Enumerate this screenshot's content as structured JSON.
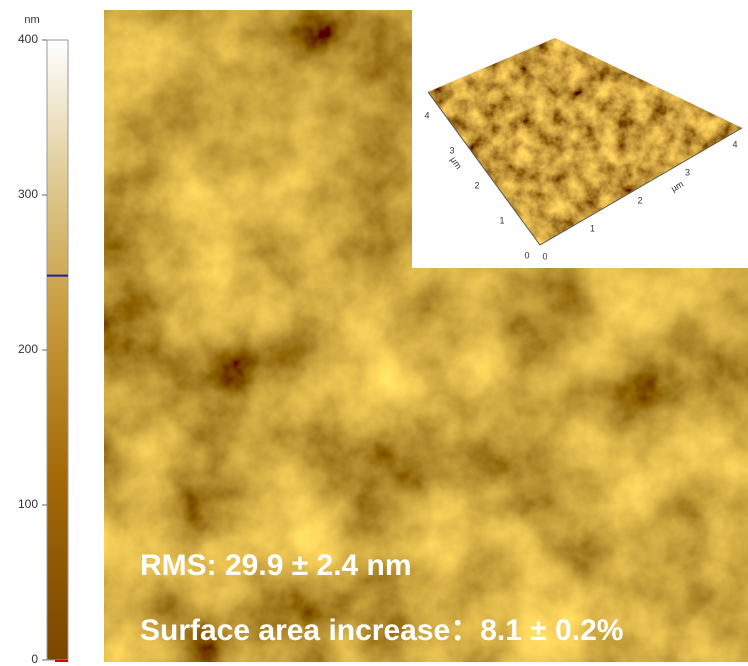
{
  "colorbar": {
    "unit": "nm",
    "range": [
      0,
      400
    ],
    "ticks": [
      0,
      100,
      200,
      300,
      400
    ],
    "marker": 248
  },
  "annotations": {
    "rms": "RMS: 29.9 ± 2.4 nm",
    "surface_area": "Surface area increase：8.1 ± 0.2%"
  },
  "inset": {
    "axis_unit": "µm",
    "x_ticks": [
      0,
      1,
      2,
      3,
      4
    ],
    "y_ticks": [
      0,
      1,
      2,
      3,
      4
    ]
  }
}
